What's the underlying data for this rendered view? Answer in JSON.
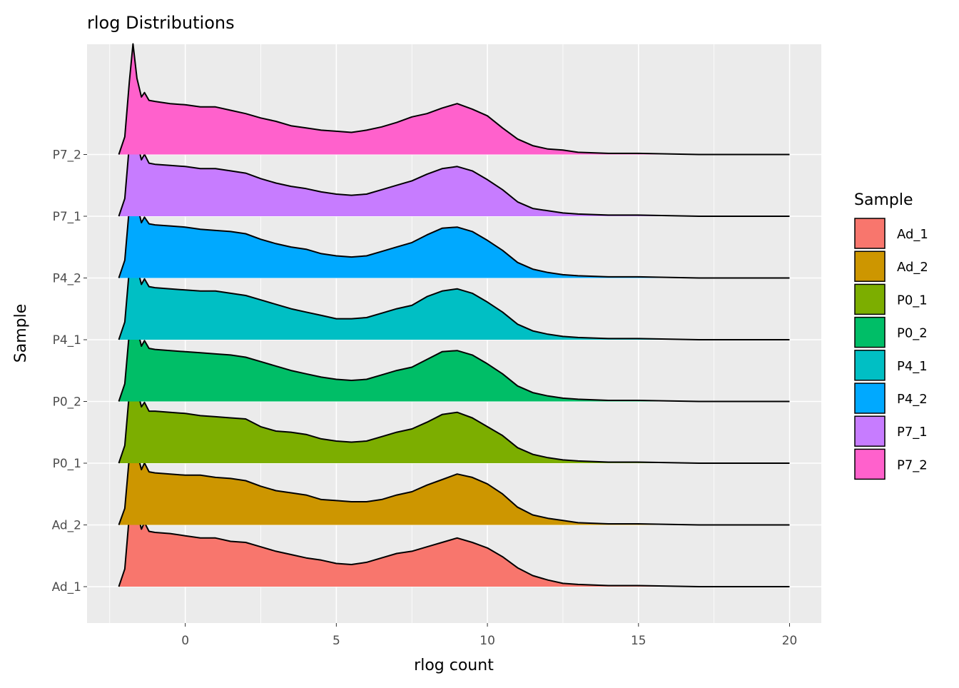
{
  "chart_data": {
    "type": "area",
    "subtype": "ridgeline",
    "title": "rlog Distributions",
    "xlabel": "rlog count",
    "ylabel": "Sample",
    "xlim": [
      -3.25,
      21.05
    ],
    "xticks": [
      0,
      5,
      10,
      15,
      20
    ],
    "xtick_labels": [
      "0",
      "5",
      "10",
      "15",
      "20"
    ],
    "grid": true,
    "legend": {
      "title": "Sample",
      "position": "right"
    },
    "x": [
      -2.2,
      -2.0,
      -1.85,
      -1.73,
      -1.6,
      -1.45,
      -1.35,
      -1.2,
      -1.0,
      -0.5,
      0,
      0.5,
      1,
      1.5,
      2,
      2.5,
      3,
      3.5,
      4,
      4.5,
      5,
      5.5,
      6,
      6.5,
      7,
      7.5,
      8,
      8.5,
      9,
      9.5,
      10,
      10.5,
      11,
      11.5,
      12,
      12.5,
      13,
      14,
      15,
      17,
      20
    ],
    "series": [
      {
        "name": "Ad_1",
        "color": "#F8766D",
        "values": [
          0,
          0.16,
          0.65,
          1.03,
          0.68,
          0.52,
          0.58,
          0.5,
          0.49,
          0.48,
          0.46,
          0.44,
          0.44,
          0.41,
          0.4,
          0.36,
          0.32,
          0.29,
          0.26,
          0.24,
          0.21,
          0.2,
          0.22,
          0.26,
          0.3,
          0.32,
          0.36,
          0.4,
          0.44,
          0.4,
          0.35,
          0.27,
          0.17,
          0.1,
          0.06,
          0.03,
          0.02,
          0.01,
          0.01,
          0.0,
          0.0
        ]
      },
      {
        "name": "Ad_2",
        "color": "#CD9600",
        "values": [
          0,
          0.15,
          0.62,
          1.0,
          0.66,
          0.5,
          0.56,
          0.48,
          0.47,
          0.46,
          0.45,
          0.45,
          0.43,
          0.42,
          0.4,
          0.35,
          0.31,
          0.29,
          0.27,
          0.23,
          0.22,
          0.21,
          0.21,
          0.23,
          0.27,
          0.3,
          0.36,
          0.41,
          0.46,
          0.43,
          0.37,
          0.28,
          0.16,
          0.09,
          0.06,
          0.04,
          0.02,
          0.01,
          0.01,
          0.0,
          0.0
        ]
      },
      {
        "name": "P0_1",
        "color": "#7CAE00",
        "values": [
          0,
          0.16,
          0.64,
          1.02,
          0.67,
          0.51,
          0.55,
          0.47,
          0.47,
          0.46,
          0.45,
          0.43,
          0.42,
          0.41,
          0.4,
          0.33,
          0.29,
          0.28,
          0.26,
          0.22,
          0.2,
          0.19,
          0.2,
          0.24,
          0.28,
          0.31,
          0.37,
          0.44,
          0.46,
          0.41,
          0.33,
          0.25,
          0.14,
          0.08,
          0.05,
          0.03,
          0.02,
          0.01,
          0.01,
          0.0,
          0.0
        ]
      },
      {
        "name": "P0_2",
        "color": "#00BE67",
        "values": [
          0,
          0.16,
          0.63,
          1.01,
          0.67,
          0.5,
          0.55,
          0.48,
          0.47,
          0.46,
          0.45,
          0.44,
          0.43,
          0.42,
          0.4,
          0.36,
          0.32,
          0.28,
          0.25,
          0.22,
          0.2,
          0.19,
          0.2,
          0.24,
          0.28,
          0.31,
          0.38,
          0.45,
          0.46,
          0.42,
          0.34,
          0.25,
          0.14,
          0.08,
          0.05,
          0.03,
          0.02,
          0.01,
          0.01,
          0.0,
          0.0
        ]
      },
      {
        "name": "P4_1",
        "color": "#00BFC4",
        "values": [
          0,
          0.16,
          0.64,
          1.02,
          0.66,
          0.5,
          0.55,
          0.48,
          0.47,
          0.46,
          0.45,
          0.44,
          0.44,
          0.42,
          0.4,
          0.36,
          0.32,
          0.28,
          0.25,
          0.22,
          0.19,
          0.19,
          0.2,
          0.24,
          0.28,
          0.31,
          0.39,
          0.44,
          0.46,
          0.42,
          0.34,
          0.25,
          0.14,
          0.08,
          0.05,
          0.03,
          0.02,
          0.01,
          0.01,
          0.0,
          0.0
        ]
      },
      {
        "name": "P4_2",
        "color": "#00A9FF",
        "values": [
          0,
          0.16,
          0.64,
          1.02,
          0.67,
          0.5,
          0.55,
          0.49,
          0.48,
          0.47,
          0.46,
          0.44,
          0.43,
          0.42,
          0.4,
          0.35,
          0.31,
          0.28,
          0.26,
          0.22,
          0.2,
          0.19,
          0.2,
          0.24,
          0.28,
          0.32,
          0.39,
          0.45,
          0.46,
          0.42,
          0.34,
          0.25,
          0.14,
          0.08,
          0.05,
          0.03,
          0.02,
          0.01,
          0.01,
          0.0,
          0.0
        ]
      },
      {
        "name": "P7_1",
        "color": "#C77CFF",
        "values": [
          0,
          0.16,
          0.65,
          1.03,
          0.68,
          0.51,
          0.56,
          0.48,
          0.47,
          0.46,
          0.45,
          0.43,
          0.43,
          0.41,
          0.39,
          0.34,
          0.3,
          0.27,
          0.25,
          0.22,
          0.2,
          0.19,
          0.2,
          0.24,
          0.28,
          0.32,
          0.38,
          0.43,
          0.45,
          0.41,
          0.33,
          0.24,
          0.13,
          0.07,
          0.05,
          0.03,
          0.02,
          0.01,
          0.01,
          0.0,
          0.0
        ]
      },
      {
        "name": "P7_2",
        "color": "#FF61CC",
        "values": [
          0,
          0.16,
          0.66,
          1.0,
          0.69,
          0.52,
          0.56,
          0.49,
          0.48,
          0.46,
          0.45,
          0.43,
          0.43,
          0.4,
          0.37,
          0.33,
          0.3,
          0.26,
          0.24,
          0.22,
          0.21,
          0.2,
          0.22,
          0.25,
          0.29,
          0.34,
          0.37,
          0.42,
          0.46,
          0.41,
          0.35,
          0.24,
          0.14,
          0.08,
          0.05,
          0.04,
          0.02,
          0.01,
          0.01,
          0.0,
          0.0
        ]
      }
    ]
  }
}
